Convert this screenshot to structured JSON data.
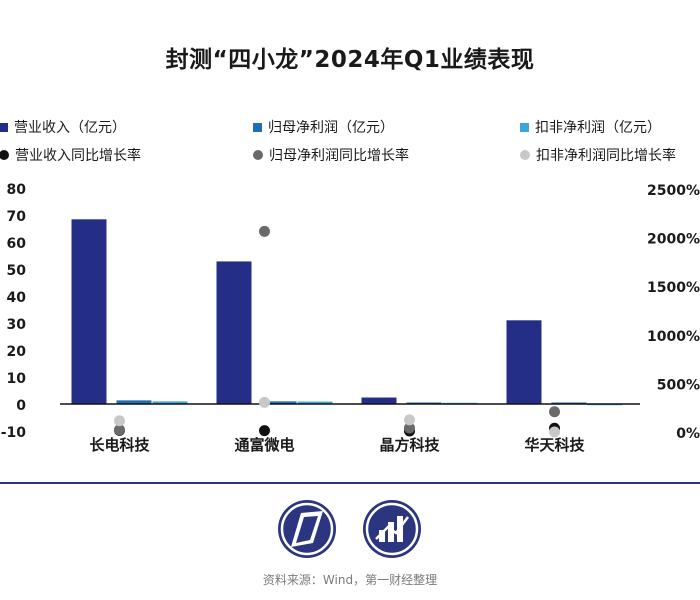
{
  "title": "封测“四小龙”2024年Q1业绩表现",
  "source": "资料来源：Wind，第一财经整理",
  "colors": {
    "revenue": "#252e86",
    "net_profit": "#1f6fb4",
    "deducted_profit": "#3aa7d8",
    "revenue_growth": "#111111",
    "net_profit_growth": "#6a6a6a",
    "deducted_profit_growth": "#c8c8c8",
    "brand": "#2b3580"
  },
  "legend": [
    {
      "label": "营业收入（亿元）",
      "marker": "square",
      "color": "#252e86"
    },
    {
      "label": "归母净利润（亿元）",
      "marker": "square",
      "color": "#1f6fb4"
    },
    {
      "label": "扣非净利润（亿元）",
      "marker": "square",
      "color": "#3aa7d8"
    },
    {
      "label": "营业收入同比增长率",
      "marker": "dot",
      "color": "#111111"
    },
    {
      "label": "归母净利润同比增长率",
      "marker": "dot",
      "color": "#6a6a6a"
    },
    {
      "label": "扣非净利润同比增长率",
      "marker": "dot",
      "color": "#c8c8c8"
    }
  ],
  "chart_data": {
    "type": "bar",
    "categories": [
      "长电科技",
      "通富微电",
      "晶方科技",
      "华天科技"
    ],
    "y_left": {
      "min": -10,
      "max": 80,
      "ticks": [
        -10,
        0,
        10,
        20,
        30,
        40,
        50,
        60,
        70,
        80
      ]
    },
    "y_right": {
      "min": 0,
      "max": 2500,
      "ticks": [
        0,
        500,
        1000,
        1500,
        2000,
        2500
      ],
      "tick_labels": [
        "0%",
        "500%",
        "1000%",
        "1500%",
        "2000%",
        "2500%"
      ]
    },
    "series": [
      {
        "name": "营业收入（亿元）",
        "kind": "bar",
        "axis": "left",
        "values": [
          68.4,
          52.8,
          2.4,
          31.0
        ]
      },
      {
        "name": "归母净利润（亿元）",
        "kind": "bar",
        "axis": "left",
        "values": [
          1.35,
          0.98,
          0.57,
          0.57
        ]
      },
      {
        "name": "扣非净利润（亿元）",
        "kind": "bar",
        "axis": "left",
        "values": [
          0.97,
          0.9,
          0.45,
          -0.42
        ]
      },
      {
        "name": "营业收入同比增长率",
        "kind": "scatter",
        "axis": "right",
        "values": [
          16.8,
          13.8,
          10.9,
          38.9
        ]
      },
      {
        "name": "归母净利润同比增长率",
        "kind": "scatter",
        "axis": "right",
        "values": [
          23.0,
          2064.0,
          41.1,
          208.4
        ]
      },
      {
        "name": "扣非净利润同比增长率",
        "kind": "scatter",
        "axis": "right",
        "values": [
          116.0,
          305.0,
          125.0,
          0.0
        ]
      }
    ],
    "grid": false,
    "legend_position": "top"
  },
  "logos": [
    "left-logo-icon",
    "right-logo-icon"
  ]
}
